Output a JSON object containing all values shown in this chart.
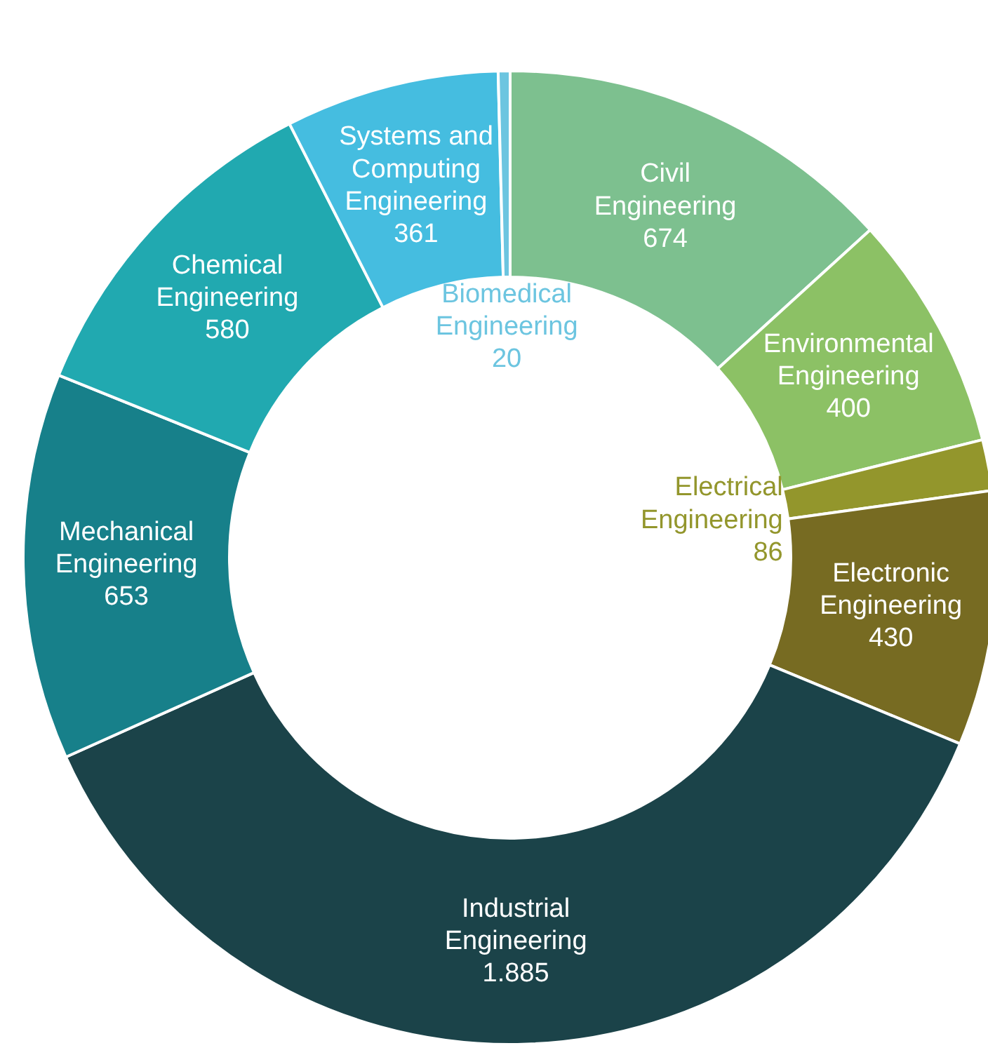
{
  "chart_data": {
    "type": "donut",
    "categories": [
      "Civil Engineering",
      "Environmental Engineering",
      "Electrical Engineering",
      "Electronic Engineering",
      "Industrial Engineering",
      "Mechanical Engineering",
      "Chemical Engineering",
      "Systems and Computing Engineering",
      "Biomedical Engineering"
    ],
    "values": [
      674,
      400,
      86,
      430,
      1885,
      653,
      580,
      361,
      20
    ],
    "value_labels": [
      "674",
      "400",
      "86",
      "430",
      "1.885",
      "653",
      "580",
      "361",
      "20"
    ],
    "colors": [
      "#7dc08f",
      "#8cc165",
      "#93962c",
      "#776b22",
      "#1b4349",
      "#17808a",
      "#21a9b0",
      "#45bde0",
      "#6cc5e0"
    ]
  }
}
